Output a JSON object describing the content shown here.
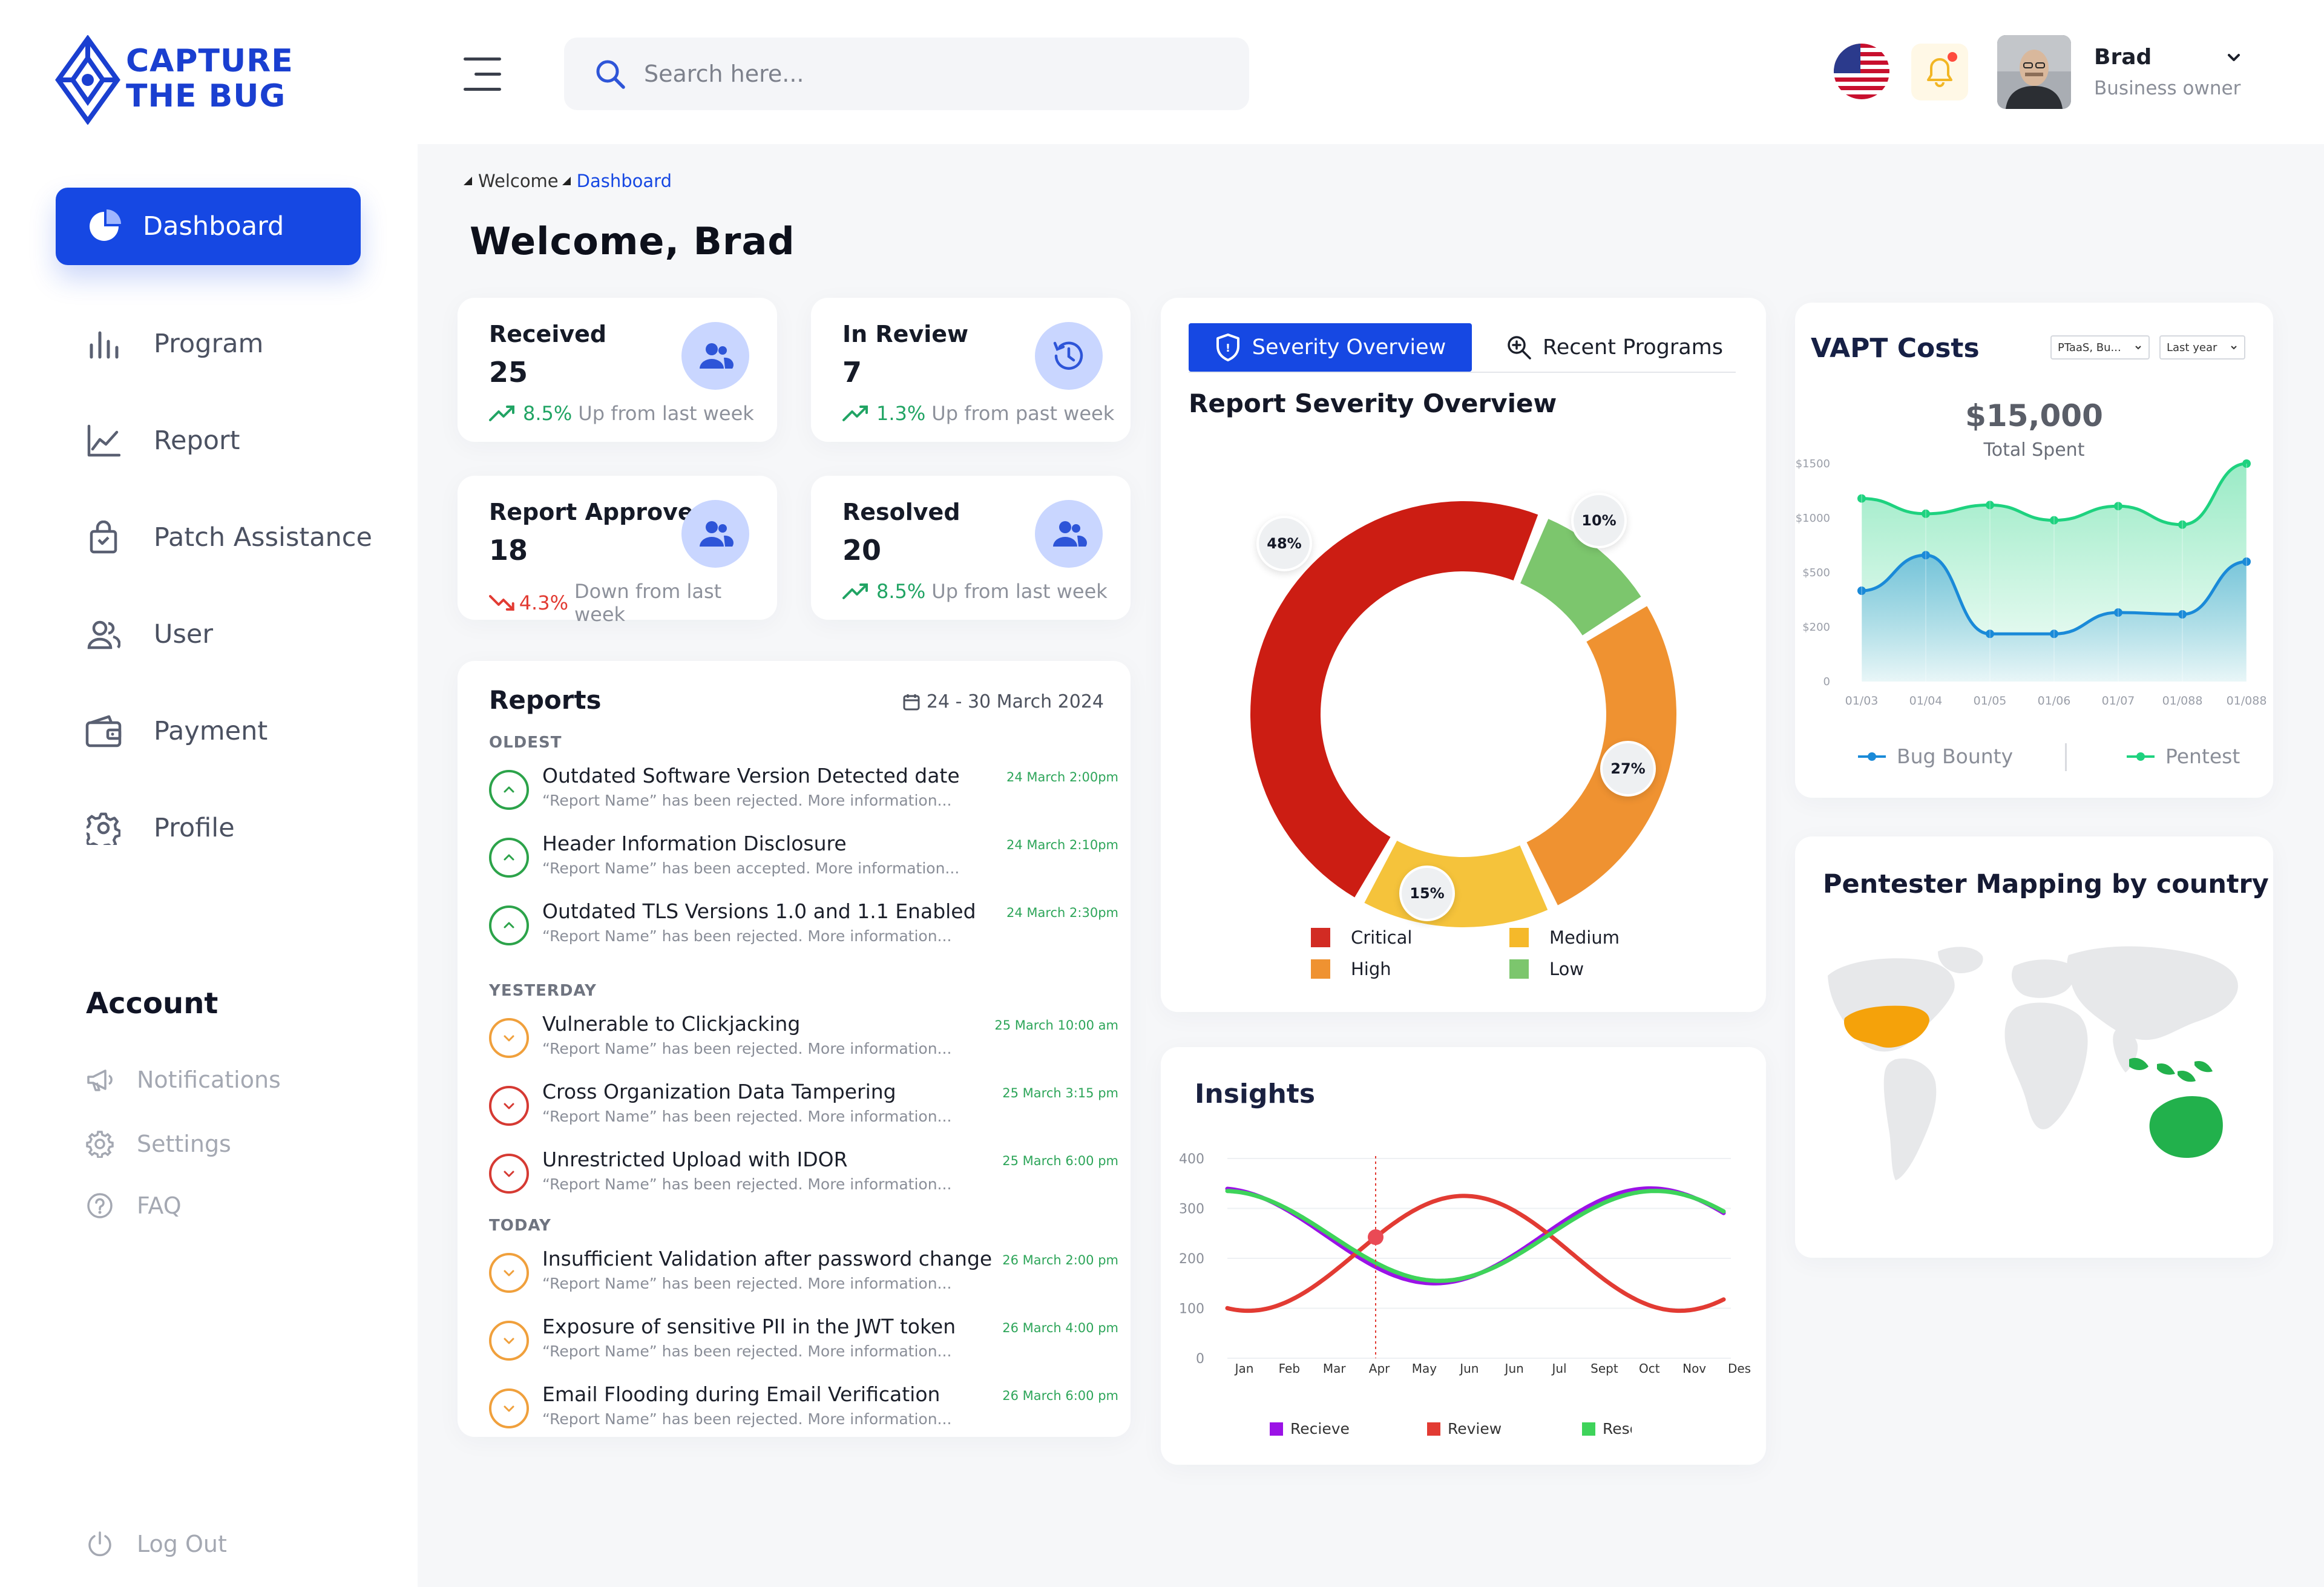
{
  "brand": {
    "line1": "CAPTURE",
    "line2": "THE BUG"
  },
  "colors": {
    "primary": "#1648e3",
    "critical": "#cc1d13",
    "high": "#ef9231",
    "medium": "#f5c33b",
    "low": "#7cc66d",
    "green": "#21a464",
    "red": "#e23b33"
  },
  "sidebar": {
    "active": {
      "label": "Dashboard",
      "icon": "pie-chart-icon"
    },
    "items": [
      {
        "label": "Program",
        "icon": "bar-chart-icon"
      },
      {
        "label": "Report",
        "icon": "line-chart-icon"
      },
      {
        "label": "Patch Assistance",
        "icon": "shopping-bag-icon"
      },
      {
        "label": "User",
        "icon": "users-icon"
      },
      {
        "label": "Payment",
        "icon": "wallet-icon"
      },
      {
        "label": "Profile",
        "icon": "gear-icon"
      }
    ],
    "account_title": "Account",
    "account_items": [
      {
        "label": "Notifications",
        "icon": "megaphone-icon"
      },
      {
        "label": "Settings",
        "icon": "settings-icon"
      },
      {
        "label": "FAQ",
        "icon": "help-icon"
      }
    ],
    "logout": "Log Out"
  },
  "topbar": {
    "search_placeholder": "Search here...",
    "user_name": "Brad",
    "user_role": "Business owner"
  },
  "breadcrumb": {
    "first": "Welcome",
    "current": "Dashboard"
  },
  "page_title": "Welcome, Brad",
  "stats": {
    "received": {
      "title": "Received",
      "value": "25",
      "pct": "8.5%",
      "text": "Up from last week",
      "dir": "up"
    },
    "in_review": {
      "title": "In Review",
      "value": "7",
      "pct": "1.3%",
      "text": "Up from past week",
      "dir": "up"
    },
    "approved": {
      "title": "Report Approved",
      "value": "18",
      "pct": "4.3%",
      "text": "Down from last week",
      "dir": "down"
    },
    "resolved": {
      "title": "Resolved",
      "value": "20",
      "pct": "8.5%",
      "text": "Up from last week",
      "dir": "up"
    }
  },
  "reports": {
    "title": "Reports",
    "date_range": "24 - 30 March 2024",
    "sections": {
      "oldest": "OLDEST",
      "yesterday": "YESTERDAY",
      "today": "TODAY"
    },
    "oldest": [
      {
        "name": " Outdated Software Version Detected date",
        "desc": "“Report Name” has been rejected. More information...",
        "time": "24 March 2:00pm",
        "status": "green"
      },
      {
        "name": "Header Information Disclosure",
        "desc": "“Report Name” has been accepted. More information...",
        "time": "24 March 2:10pm",
        "status": "green"
      },
      {
        "name": "Outdated TLS Versions 1.0 and 1.1 Enabled",
        "desc": "“Report Name” has been rejected. More information...",
        "time": "24 March 2:30pm",
        "status": "green"
      }
    ],
    "yesterday": [
      {
        "name": "Vulnerable to Clickjacking",
        "desc": "“Report Name” has been rejected. More information...",
        "time": "25 March 10:00 am",
        "status": "orange"
      },
      {
        "name": "Cross Organization Data Tampering",
        "desc": "“Report Name” has been rejected. More information...",
        "time": "25 March 3:15 pm",
        "status": "red"
      },
      {
        "name": "Unrestricted Upload with IDOR",
        "desc": "“Report Name” has been rejected. More information...",
        "time": "25 March 6:00 pm",
        "status": "red"
      }
    ],
    "today": [
      {
        "name": "Insufficient Validation after password change",
        "desc": "“Report Name” has been rejected. More information...",
        "time": "26 March 2:00 pm",
        "status": "orange"
      },
      {
        "name": "Exposure of sensitive PII in the JWT token",
        "desc": "“Report Name” has been rejected. More information...",
        "time": "26 March 4:00 pm",
        "status": "orange"
      },
      {
        "name": "Email Flooding during Email Verification",
        "desc": "“Report Name” has been rejected. More information...",
        "time": "26 March 6:00 pm",
        "status": "orange"
      }
    ]
  },
  "severity": {
    "tab_active": "Severity Overview",
    "tab_inactive": "Recent Programs",
    "title": "Report Severity Overview"
  },
  "vapt": {
    "title": "VAPT Costs",
    "filter1": "PTaaS, Bu...",
    "filter2": "Last year",
    "amount": "$15,000",
    "amount_label": "Total Spent"
  },
  "map": {
    "title": "Pentester Mapping by country"
  },
  "insights": {
    "title": "Insights"
  },
  "chart_data": [
    {
      "type": "pie",
      "title": "Report Severity Overview",
      "categories": [
        "Critical",
        "High",
        "Medium",
        "Low"
      ],
      "values": [
        48,
        27,
        15,
        10
      ],
      "labels": [
        "48%",
        "27%",
        "15%",
        "10%"
      ],
      "colors": [
        "#cc1d13",
        "#ef9231",
        "#f5c33b",
        "#7cc66d"
      ],
      "legend": "bottom"
    },
    {
      "type": "area",
      "title": "VAPT Costs",
      "x": [
        "01/03",
        "01/04",
        "01/05",
        "01/06",
        "01/07",
        "01/088",
        "01/088"
      ],
      "y_ticks": [
        "$1500",
        "$1000",
        "$500",
        "$200",
        "0"
      ],
      "series": [
        {
          "name": "Bug Bounty",
          "values": [
            400,
            660,
            175,
            175,
            280,
            270,
            600
          ],
          "color": "#1a8ad8"
        },
        {
          "name": "Pentest",
          "values": [
            1180,
            1040,
            1120,
            980,
            1110,
            940,
            1500
          ],
          "color": "#1ed27f"
        }
      ],
      "legend": "bottom"
    },
    {
      "type": "line",
      "title": "Insights",
      "x": [
        "Jan",
        "Feb",
        "Mar",
        "Apr",
        "May",
        "Jun",
        "Jun",
        "Jul",
        "Sept",
        "Oct",
        "Nov",
        "Des"
      ],
      "y_ticks": [
        "400",
        "300",
        "200",
        "100",
        "0"
      ],
      "ylim": [
        0,
        400
      ],
      "series": [
        {
          "name": "Recieve",
          "color": "#9b12e6"
        },
        {
          "name": "Review",
          "color": "#e23b33"
        },
        {
          "name": "Resolved",
          "color": "#3ed35a"
        }
      ],
      "legend": "bottom"
    }
  ]
}
